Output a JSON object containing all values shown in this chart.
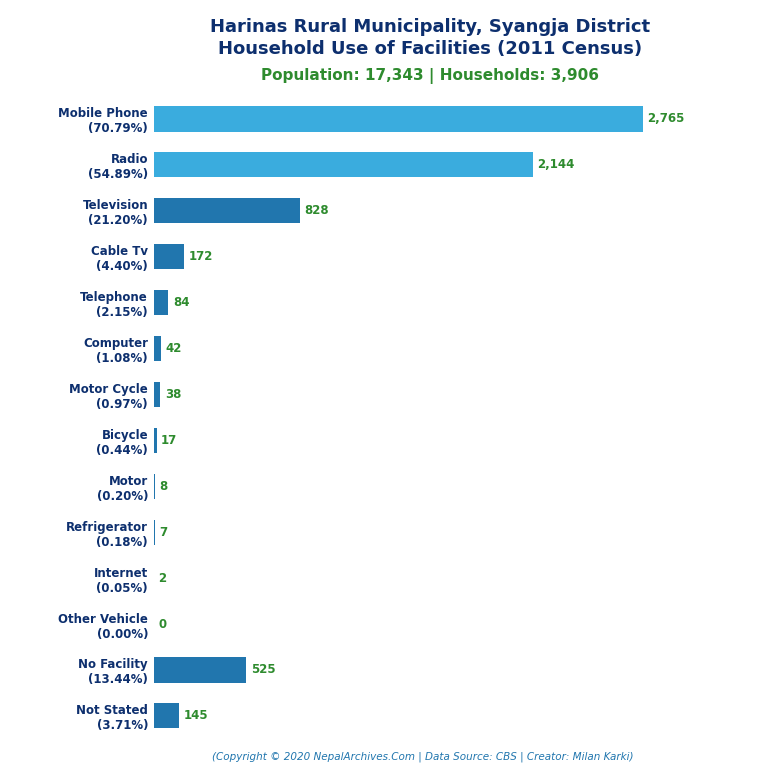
{
  "title_line1": "Harinas Rural Municipality, Syangja District",
  "title_line2": "Household Use of Facilities (2011 Census)",
  "subtitle": "Population: 17,343 | Households: 3,906",
  "footer": "(Copyright © 2020 NepalArchives.Com | Data Source: CBS | Creator: Milan Karki)",
  "categories": [
    "Not Stated\n(3.71%)",
    "No Facility\n(13.44%)",
    "Other Vehicle\n(0.00%)",
    "Internet\n(0.05%)",
    "Refrigerator\n(0.18%)",
    "Motor\n(0.20%)",
    "Bicycle\n(0.44%)",
    "Motor Cycle\n(0.97%)",
    "Computer\n(1.08%)",
    "Telephone\n(2.15%)",
    "Cable Tv\n(4.40%)",
    "Television\n(21.20%)",
    "Radio\n(54.89%)",
    "Mobile Phone\n(70.79%)"
  ],
  "values": [
    145,
    525,
    0,
    2,
    7,
    8,
    17,
    38,
    42,
    84,
    172,
    828,
    2144,
    2765
  ],
  "value_labels": [
    "145",
    "525",
    "0",
    "2",
    "7",
    "8",
    "17",
    "38",
    "42",
    "84",
    "172",
    "828",
    "2,144",
    "2,765"
  ],
  "bar_colors": [
    "#2176ae",
    "#2176ae",
    "#2176ae",
    "#2176ae",
    "#2176ae",
    "#2176ae",
    "#2176ae",
    "#2176ae",
    "#2176ae",
    "#2176ae",
    "#2176ae",
    "#2176ae",
    "#3aacde",
    "#3aacde"
  ],
  "title_color": "#0d2f6e",
  "subtitle_color": "#2e8b2e",
  "value_color": "#2e8b2e",
  "label_color": "#0d2f6e",
  "footer_color": "#2176ae",
  "background_color": "#ffffff",
  "xlim": [
    0,
    3300
  ],
  "title_fontsize": 13,
  "subtitle_fontsize": 11,
  "label_fontsize": 8.5,
  "value_fontsize": 8.5,
  "footer_fontsize": 7.5
}
